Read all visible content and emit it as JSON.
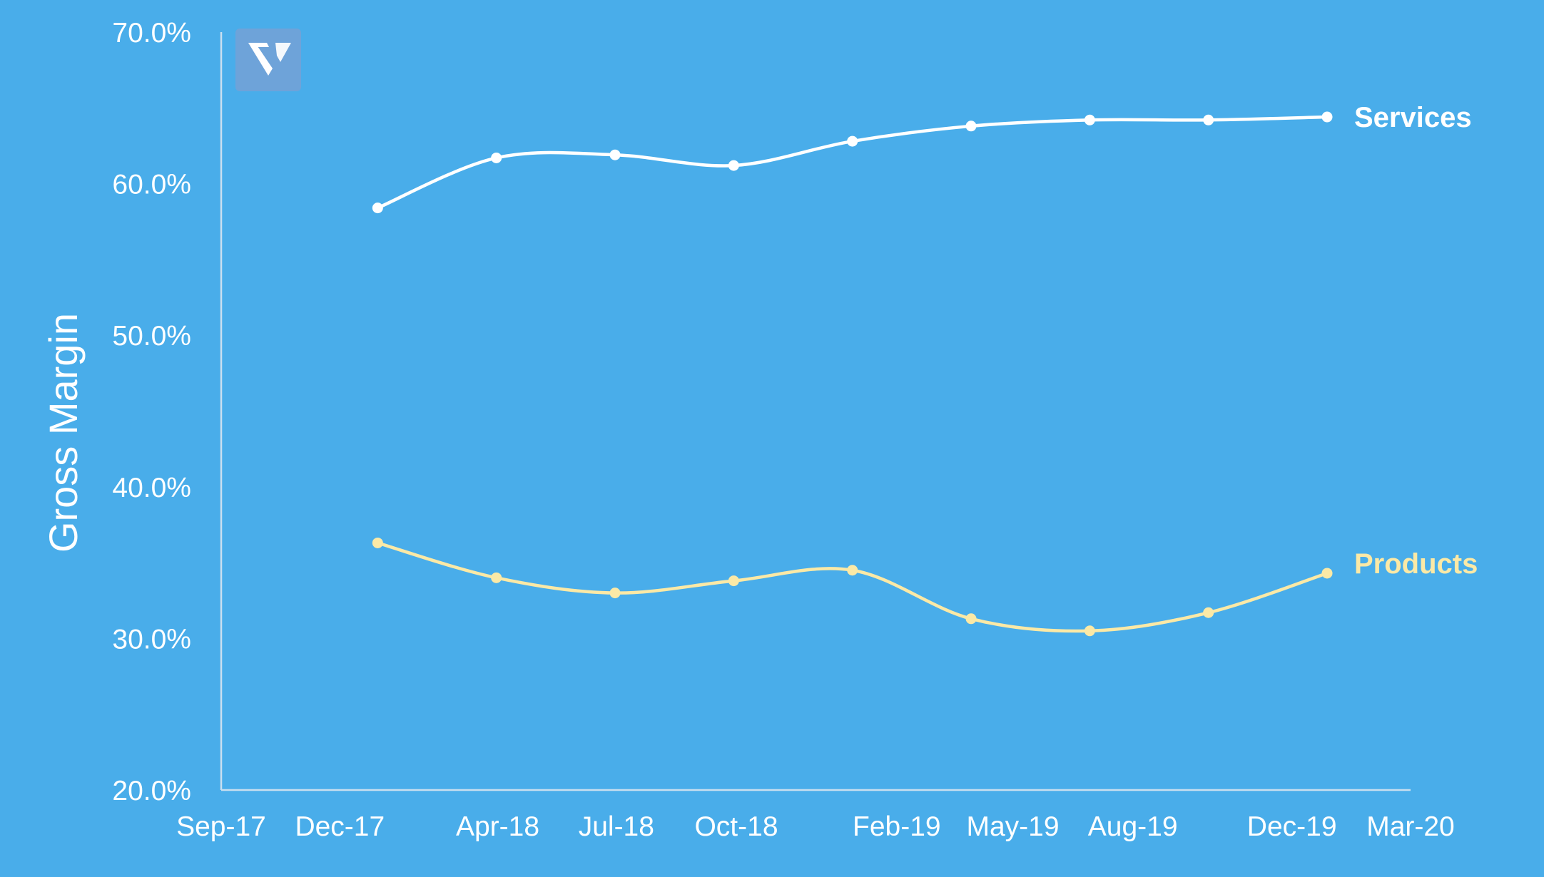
{
  "colors": {
    "background": "#49adea",
    "services": "#ffffff",
    "products": "#fbe9a6",
    "axis": "#c9dff0",
    "logo_bg": "#6ea3d9"
  },
  "logo": {
    "icon": "v-logo-icon"
  },
  "chart_data": {
    "type": "line",
    "title": "",
    "xlabel": "",
    "ylabel": "Gross Margin",
    "ylim": [
      20.0,
      70.0
    ],
    "y_ticks": [
      "20.0%",
      "30.0%",
      "40.0%",
      "50.0%",
      "60.0%",
      "70.0%"
    ],
    "y_tick_values": [
      20,
      30,
      40,
      50,
      60,
      70
    ],
    "xlim": [
      "2017-09-01",
      "2020-03-01"
    ],
    "x_ticks": [
      "Sep-17",
      "Dec-17",
      "Apr-18",
      "Jul-18",
      "Oct-18",
      "Feb-19",
      "May-19",
      "Aug-19",
      "Dec-19",
      "Mar-20"
    ],
    "x_tick_dates": [
      "2017-09-01",
      "2017-12-01",
      "2018-04-01",
      "2018-07-01",
      "2018-10-01",
      "2019-02-01",
      "2019-05-01",
      "2019-08-01",
      "2019-12-01",
      "2020-03-01"
    ],
    "x": [
      "2017-12-30",
      "2018-03-31",
      "2018-06-30",
      "2018-09-29",
      "2018-12-29",
      "2019-03-30",
      "2019-06-29",
      "2019-09-28",
      "2019-12-28"
    ],
    "grid": false,
    "smooth": true,
    "series": [
      {
        "name": "Services",
        "values": [
          58.4,
          61.7,
          61.9,
          61.2,
          62.8,
          63.8,
          64.2,
          64.2,
          64.4
        ]
      },
      {
        "name": "Products",
        "values": [
          36.3,
          34.0,
          33.0,
          33.8,
          34.5,
          31.3,
          30.5,
          31.7,
          34.3
        ]
      }
    ]
  }
}
